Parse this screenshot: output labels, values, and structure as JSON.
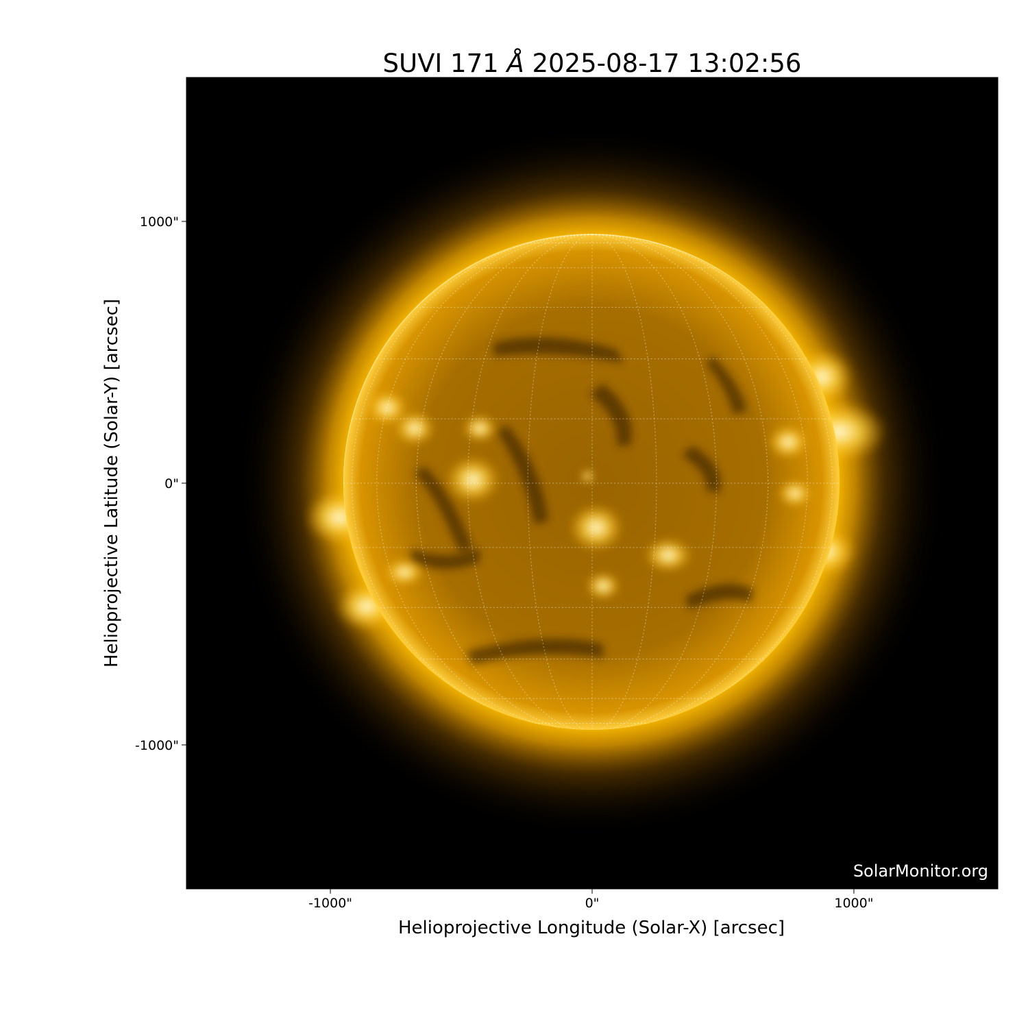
{
  "chart_data": {
    "type": "image",
    "title": "SUVI 171 Å 2025-08-17 13:02:56",
    "title_parts": {
      "prefix": "SUVI 171 ",
      "unit": "Å",
      "suffix": " 2025-08-17 13:02:56"
    },
    "xlabel": "Helioprojective Longitude (Solar-X) [arcsec]",
    "ylabel": "Helioprojective Latitude (Solar-Y) [arcsec]",
    "xlim": [
      -1550,
      1550
    ],
    "ylim": [
      -1550,
      1550
    ],
    "x_ticks": [
      {
        "value": -1000,
        "label": "-1000\""
      },
      {
        "value": 0,
        "label": "0\""
      },
      {
        "value": 1000,
        "label": "1000\""
      }
    ],
    "y_ticks": [
      {
        "value": 1000,
        "label": "1000\""
      },
      {
        "value": 0,
        "label": "0\""
      },
      {
        "value": -1000,
        "label": "-1000\""
      }
    ],
    "solar_radius_arcsec": 950,
    "grid_spacing_deg": 15,
    "colormap": "sdoaia171",
    "colors": {
      "background": "#000000",
      "disk": "#b07800",
      "limb": "#ffc21a",
      "corona": "#ffb300",
      "grid": "#ffffff"
    },
    "watermark": "SolarMonitor.org"
  }
}
